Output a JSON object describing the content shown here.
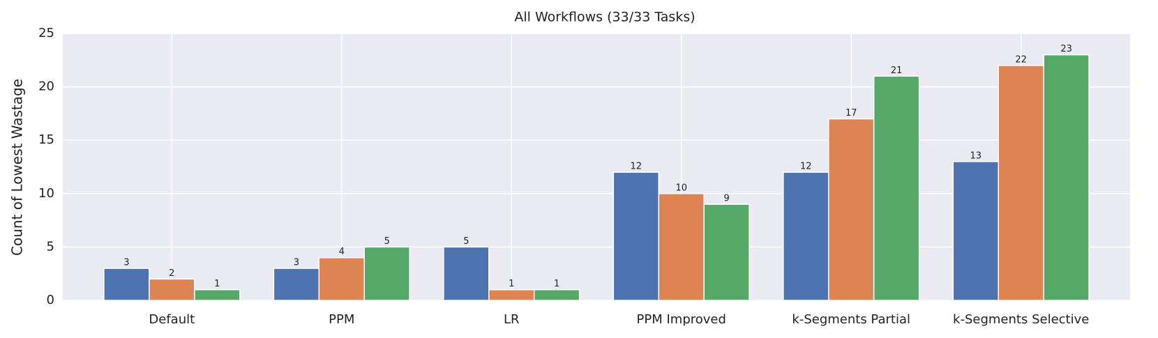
{
  "chart_data": {
    "type": "bar",
    "title": "All Workflows (33/33 Tasks)",
    "y_label": "Count of Lowest Wastage",
    "categories": [
      "Default",
      "PPM",
      "LR",
      "PPM Improved",
      "k-Segments Partial",
      "k-Segments Selective"
    ],
    "series": [
      {
        "color": "#4c72b0",
        "values": [
          3,
          3,
          5,
          12,
          12,
          13
        ]
      },
      {
        "color": "#dd8452",
        "values": [
          2,
          4,
          1,
          10,
          17,
          22
        ]
      },
      {
        "color": "#55a868",
        "values": [
          1,
          5,
          1,
          9,
          21,
          23
        ]
      }
    ],
    "ylim": [
      0,
      25
    ],
    "yticks": [
      0,
      5,
      10,
      15,
      20,
      25
    ],
    "grid": true
  }
}
